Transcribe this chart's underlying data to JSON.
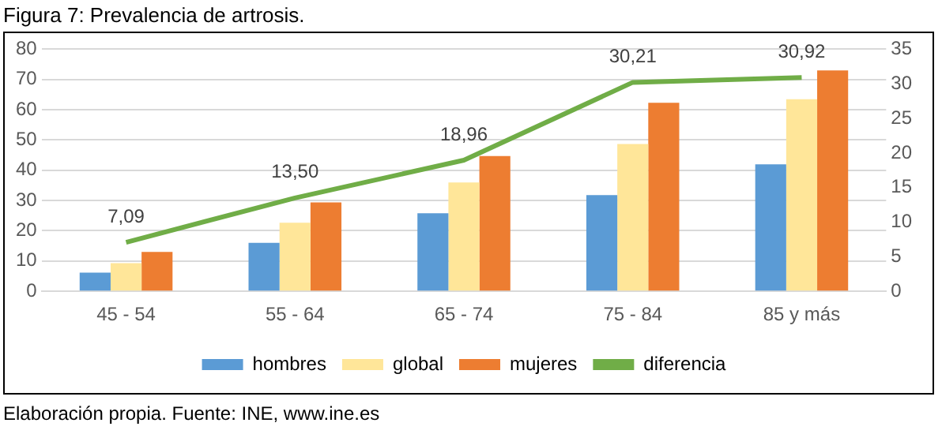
{
  "chart_data": {
    "type": "bar",
    "title": "Figura 7: Prevalencia de artrosis.",
    "categories": [
      "45 - 54",
      "55 - 64",
      "65 - 74",
      "75 - 84",
      "85 y más"
    ],
    "series": [
      {
        "name": "hombres",
        "color": "#5b9bd5",
        "values": [
          6.2,
          16,
          25.8,
          31.8,
          42
        ]
      },
      {
        "name": "global",
        "color": "#ffe699",
        "values": [
          9.3,
          22.7,
          36,
          48.7,
          63.5
        ]
      },
      {
        "name": "mujeres",
        "color": "#ed7d31",
        "values": [
          13,
          29.4,
          44.7,
          62.3,
          73
        ]
      },
      {
        "name": "diferencia",
        "type": "line",
        "axis": "y2",
        "color": "#70ad47",
        "values": [
          7.09,
          13.5,
          18.96,
          30.21,
          30.92
        ],
        "value_labels": [
          "7,09",
          "13,50",
          "18,96",
          "30,21",
          "30,92"
        ]
      }
    ],
    "ylim": [
      0,
      80
    ],
    "yticks": [
      0,
      10,
      20,
      30,
      40,
      50,
      60,
      70,
      80
    ],
    "y2lim": [
      0,
      35
    ],
    "y2ticks": [
      0,
      5,
      10,
      15,
      20,
      25,
      30,
      35
    ],
    "grid": "y",
    "legend": "bottom",
    "marker": "none",
    "annotations": [
      "Elaboración propia. Fuente: INE, www.ine.es"
    ]
  }
}
